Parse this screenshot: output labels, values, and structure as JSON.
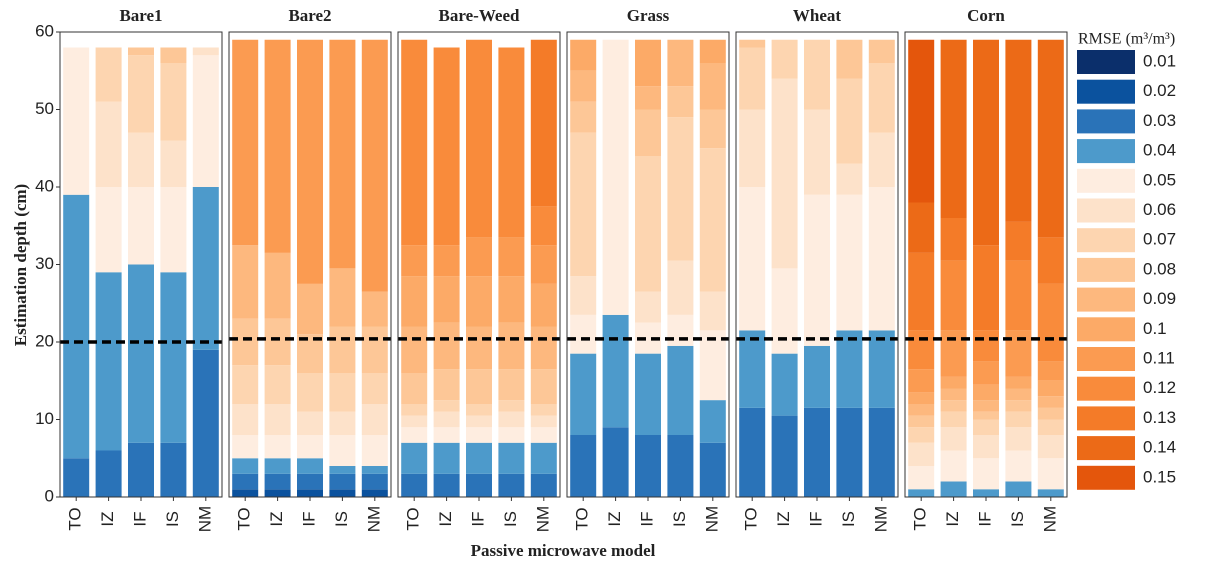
{
  "chart_data": {
    "type": "faceted_stacked_bar",
    "y_label": "Estimation depth (cm)",
    "x_label": "Passive microwave model",
    "legend_title": "RMSE (m³/m³)",
    "facets": [
      "Bare1",
      "Bare2",
      "Bare-Weed",
      "Grass",
      "Wheat",
      "Corn"
    ],
    "categories": [
      "TO",
      "IZ",
      "IF",
      "IS",
      "NM"
    ],
    "reference_lines": [
      20,
      20.4,
      20.4,
      20.4,
      20.4,
      20.4
    ],
    "ylim": [
      0,
      60
    ],
    "yticks": [
      0,
      10,
      20,
      30,
      40,
      50,
      60
    ],
    "series": [
      {
        "name": "0.01",
        "color": "#0b2f6b",
        "values": [
          [
            0,
            0,
            0,
            0,
            0
          ],
          [
            0,
            0,
            0,
            0,
            0
          ],
          [
            0,
            0,
            0,
            0,
            0
          ],
          [
            0,
            0,
            0,
            0,
            0
          ],
          [
            0,
            0,
            0,
            0,
            0
          ],
          [
            0,
            0,
            0,
            0,
            0
          ]
        ]
      },
      {
        "name": "0.02",
        "color": "#0b529e",
        "values": [
          [
            0,
            0,
            0,
            0,
            0
          ],
          [
            1,
            1,
            1,
            1,
            1
          ],
          [
            0,
            0,
            0,
            0,
            0
          ],
          [
            0,
            0,
            0,
            0,
            0
          ],
          [
            0,
            0,
            0,
            0,
            0
          ],
          [
            0,
            0,
            0,
            0,
            0
          ]
        ]
      },
      {
        "name": "0.03",
        "color": "#2a73b8",
        "values": [
          [
            5,
            6,
            7,
            7,
            19
          ],
          [
            2,
            2,
            2,
            2,
            2
          ],
          [
            3,
            3,
            3,
            3,
            3
          ],
          [
            8,
            9,
            8,
            8,
            7
          ],
          [
            11.5,
            10.5,
            11.5,
            11.5,
            11.5
          ],
          [
            0,
            0,
            0,
            0,
            0
          ]
        ]
      },
      {
        "name": "0.04",
        "color": "#4d9acb",
        "values": [
          [
            34,
            23,
            23,
            22,
            21
          ],
          [
            2,
            2,
            2,
            1,
            1
          ],
          [
            4,
            4,
            4,
            4,
            4
          ],
          [
            10.5,
            14.5,
            10.5,
            11.5,
            5.5
          ],
          [
            10,
            8,
            8,
            10,
            10
          ],
          [
            1,
            2,
            1,
            2,
            1
          ]
        ]
      },
      {
        "name": "0.05",
        "color": "#feede0",
        "values": [
          [
            19,
            11,
            10,
            11,
            17
          ],
          [
            3,
            3,
            3,
            4,
            4
          ],
          [
            2,
            2,
            2,
            2,
            2
          ],
          [
            5,
            35.5,
            4,
            4,
            9
          ],
          [
            18.5,
            11,
            19.5,
            17.5,
            18.5
          ],
          [
            3,
            4,
            4,
            4,
            4
          ]
        ]
      },
      {
        "name": "0.06",
        "color": "#fde2ca",
        "values": [
          [
            0,
            11,
            7,
            6,
            1
          ],
          [
            4,
            4,
            3,
            3,
            4
          ],
          [
            1.5,
            2,
            1.5,
            2,
            1.5
          ],
          [
            5,
            0,
            4,
            7,
            5
          ],
          [
            10,
            24.5,
            11,
            4,
            7
          ],
          [
            3,
            3,
            3,
            3,
            3
          ]
        ]
      },
      {
        "name": "0.07",
        "color": "#fdd5b0",
        "values": [
          [
            0,
            7,
            10,
            10,
            0
          ],
          [
            5,
            5,
            5,
            5,
            4
          ],
          [
            1.5,
            1.5,
            1.5,
            1.5,
            1.5
          ],
          [
            18.5,
            0,
            17.5,
            18.5,
            18.5
          ],
          [
            8,
            5,
            9,
            11,
            9
          ],
          [
            2,
            2,
            2,
            2,
            2
          ]
        ]
      },
      {
        "name": "0.08",
        "color": "#fdc797",
        "values": [
          [
            0,
            0,
            1,
            2,
            0
          ],
          [
            6,
            6,
            5,
            6,
            6
          ],
          [
            4,
            4,
            4.5,
            4,
            4.5
          ],
          [
            4,
            0,
            6,
            4,
            5
          ],
          [
            1,
            0,
            0,
            5,
            3
          ],
          [
            1.5,
            1.5,
            1,
            1.5,
            1.5
          ]
        ]
      },
      {
        "name": "0.09",
        "color": "#fdb87e",
        "values": [
          [
            0,
            0,
            0,
            0,
            0
          ],
          [
            9.5,
            8.5,
            6.5,
            7.5,
            4.5
          ],
          [
            6,
            6,
            5.5,
            6,
            5.5
          ],
          [
            4,
            0,
            3,
            6,
            6
          ],
          [
            0,
            0,
            0,
            0,
            0
          ],
          [
            1.5,
            1.5,
            1.5,
            1.5,
            1.5
          ]
        ]
      },
      {
        "name": "0.1",
        "color": "#fcaa67",
        "values": [
          [
            0,
            0,
            0,
            0,
            0
          ],
          [
            0,
            0,
            0,
            0,
            0
          ],
          [
            6.5,
            6,
            6.5,
            6,
            5.5
          ],
          [
            4,
            0,
            6,
            0,
            3
          ],
          [
            0,
            0,
            0,
            0,
            0
          ],
          [
            1.5,
            1.5,
            2,
            1.5,
            2
          ]
        ]
      },
      {
        "name": "0.11",
        "color": "#fb9b51",
        "values": [
          [
            0,
            0,
            0,
            0,
            0
          ],
          [
            26.5,
            27.5,
            31.5,
            29.5,
            32.5
          ],
          [
            4,
            4,
            5,
            5,
            5
          ],
          [
            0,
            0,
            0,
            0,
            0
          ],
          [
            0,
            0,
            0,
            0,
            0
          ],
          [
            3,
            6,
            3,
            6,
            2.5
          ]
        ]
      },
      {
        "name": "0.12",
        "color": "#f98b3b",
        "values": [
          [
            0,
            0,
            0,
            0,
            0
          ],
          [
            0,
            0,
            0,
            0,
            0
          ],
          [
            26.5,
            25.5,
            25.5,
            24.5,
            5
          ],
          [
            0,
            0,
            0,
            0,
            0
          ],
          [
            0,
            0,
            0,
            0,
            0
          ],
          [
            5,
            9,
            4,
            9,
            10
          ]
        ]
      },
      {
        "name": "0.13",
        "color": "#f47b28",
        "values": [
          [
            0,
            0,
            0,
            0,
            0
          ],
          [
            0,
            0,
            0,
            0,
            0
          ],
          [
            0,
            0,
            0,
            0,
            21.5
          ],
          [
            0,
            0,
            0,
            0,
            0
          ],
          [
            0,
            0,
            0,
            0,
            0
          ],
          [
            10,
            5.5,
            11,
            5,
            6
          ]
        ]
      },
      {
        "name": "0.14",
        "color": "#ec6a17",
        "values": [
          [
            0,
            0,
            0,
            0,
            0
          ],
          [
            0,
            0,
            0,
            0,
            0
          ],
          [
            0,
            0,
            0,
            0,
            0
          ],
          [
            0,
            0,
            0,
            0,
            0
          ],
          [
            0,
            0,
            0,
            0,
            0
          ],
          [
            6.5,
            23,
            26.5,
            23.5,
            25.5
          ]
        ]
      },
      {
        "name": "0.15",
        "color": "#e4560c",
        "values": [
          [
            0,
            0,
            0,
            0,
            0
          ],
          [
            0,
            0,
            0,
            0,
            0
          ],
          [
            0,
            0,
            0,
            0,
            0
          ],
          [
            0,
            0,
            0,
            0,
            0
          ],
          [
            0,
            0,
            0,
            0,
            0
          ],
          [
            21,
            0,
            0,
            0,
            0
          ]
        ]
      }
    ]
  }
}
